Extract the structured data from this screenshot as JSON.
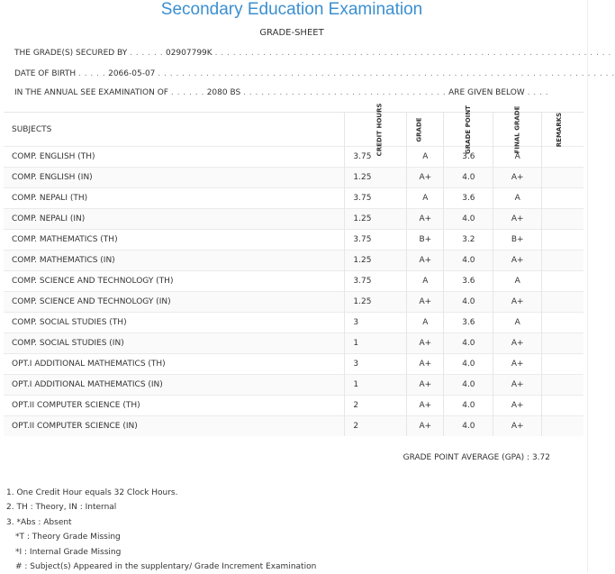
{
  "header": {
    "title": "Secondary Education Examination",
    "subtitle": "GRADE-SHEET"
  },
  "info": {
    "secured_label": "THE GRADE(S) SECURED BY",
    "symbol_no": "02907799K",
    "dob_label": "DATE OF BIRTH",
    "dob": "2066-05-07",
    "exam_label": "IN THE ANNUAL SEE EXAMINATION OF",
    "exam_year": "2080 BS",
    "given_below": "ARE GIVEN BELOW"
  },
  "table": {
    "headers": {
      "subjects": "SUBJECTS",
      "credit_hours": "CREDIT HOURS",
      "grade": "GRADE",
      "grade_point": "GRADE POINT",
      "final_grade": "FINAL GRADE",
      "remarks": "REMARKS"
    },
    "rows": [
      {
        "subject": "COMP. ENGLISH (TH)",
        "credit": "3.75",
        "grade": "A",
        "point": "3.6",
        "final": "A",
        "remarks": ""
      },
      {
        "subject": "COMP. ENGLISH (IN)",
        "credit": "1.25",
        "grade": "A+",
        "point": "4.0",
        "final": "A+",
        "remarks": ""
      },
      {
        "subject": "COMP. NEPALI (TH)",
        "credit": "3.75",
        "grade": "A",
        "point": "3.6",
        "final": "A",
        "remarks": ""
      },
      {
        "subject": "COMP. NEPALI (IN)",
        "credit": "1.25",
        "grade": "A+",
        "point": "4.0",
        "final": "A+",
        "remarks": ""
      },
      {
        "subject": "COMP. MATHEMATICS (TH)",
        "credit": "3.75",
        "grade": "B+",
        "point": "3.2",
        "final": "B+",
        "remarks": ""
      },
      {
        "subject": "COMP. MATHEMATICS (IN)",
        "credit": "1.25",
        "grade": "A+",
        "point": "4.0",
        "final": "A+",
        "remarks": ""
      },
      {
        "subject": "COMP. SCIENCE AND TECHNOLOGY (TH)",
        "credit": "3.75",
        "grade": "A",
        "point": "3.6",
        "final": "A",
        "remarks": ""
      },
      {
        "subject": "COMP. SCIENCE AND TECHNOLOGY (IN)",
        "credit": "1.25",
        "grade": "A+",
        "point": "4.0",
        "final": "A+",
        "remarks": ""
      },
      {
        "subject": "COMP. SOCIAL STUDIES (TH)",
        "credit": "3",
        "grade": "A",
        "point": "3.6",
        "final": "A",
        "remarks": ""
      },
      {
        "subject": "COMP. SOCIAL STUDIES (IN)",
        "credit": "1",
        "grade": "A+",
        "point": "4.0",
        "final": "A+",
        "remarks": ""
      },
      {
        "subject": "OPT.I ADDITIONAL MATHEMATICS (TH)",
        "credit": "3",
        "grade": "A+",
        "point": "4.0",
        "final": "A+",
        "remarks": ""
      },
      {
        "subject": "OPT.I ADDITIONAL MATHEMATICS (IN)",
        "credit": "1",
        "grade": "A+",
        "point": "4.0",
        "final": "A+",
        "remarks": ""
      },
      {
        "subject": "OPT.II COMPUTER SCIENCE (TH)",
        "credit": "2",
        "grade": "A+",
        "point": "4.0",
        "final": "A+",
        "remarks": ""
      },
      {
        "subject": "OPT.II COMPUTER SCIENCE (IN)",
        "credit": "2",
        "grade": "A+",
        "point": "4.0",
        "final": "A+",
        "remarks": ""
      }
    ]
  },
  "gpa": {
    "label": "GRADE POINT AVERAGE (GPA) :",
    "value": "3.72"
  },
  "notes": [
    "1. One Credit Hour equals 32 Clock Hours.",
    "2. TH : Theory, IN : Internal",
    "3. *Abs : Absent",
    "*T : Theory Grade Missing",
    "*I : Internal Grade Missing",
    "# : Subject(s) Appeared in the supplentary/ Grade Increment Examination"
  ],
  "colors": {
    "title": "#3b8fd0",
    "text": "#333333",
    "border": "#e6e6e6"
  }
}
